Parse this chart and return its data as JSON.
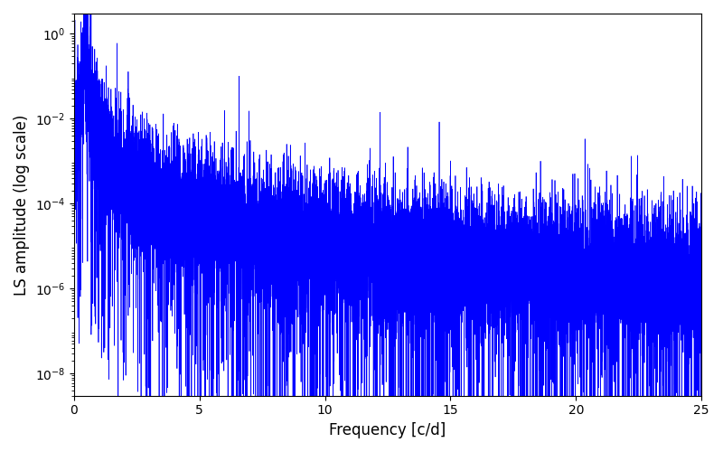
{
  "title": "",
  "xlabel": "Frequency [c/d]",
  "ylabel": "LS amplitude (log scale)",
  "line_color": "#0000ff",
  "line_width": 0.5,
  "xlim": [
    0,
    25
  ],
  "yscale": "log",
  "figsize": [
    8.0,
    5.0
  ],
  "dpi": 100,
  "background_color": "#ffffff",
  "seed": 12345,
  "n_points": 15000,
  "peak_freq": 0.45,
  "peak_amplitude": 1.0,
  "noise_floor_low": 1e-06,
  "noise_floor_high": 2e-06,
  "ylim_bottom": 3e-09,
  "ylim_top": 3.0
}
